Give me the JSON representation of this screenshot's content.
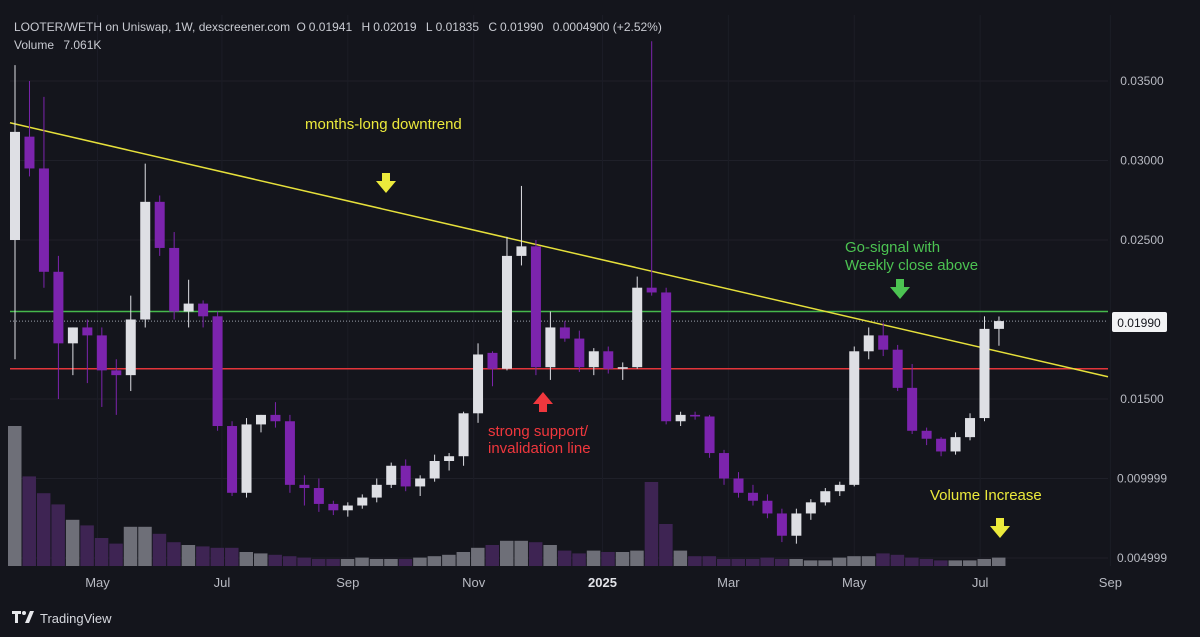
{
  "header": {
    "pair": "LOOTER/WETH on Uniswap, 1W, dexscreener.com",
    "open_label": "O",
    "open": "0.01941",
    "high_label": "H",
    "high": "0.02019",
    "low_label": "L",
    "low": "0.01835",
    "close_label": "C",
    "close": "0.01990",
    "change": "0.0004900 (+2.52%)",
    "volume_label": "Volume",
    "volume": "7.061K"
  },
  "footer": {
    "brand": "TradingView",
    "logo": "tradingview-logo-icon"
  },
  "colors": {
    "background": "#14151c",
    "bull": "#dedfe4",
    "bear": "#7c24ad",
    "trendline": "#e6e03b",
    "support": "#e3353a",
    "resistance": "#46b84c",
    "annotation_yellow": "#ecea3c",
    "annotation_red": "#f0373d",
    "annotation_green": "#4cc352",
    "vol_bull": "#6e6f78",
    "vol_bear": "#3e2453"
  },
  "annotations": {
    "downtrend": "months-long downtrend",
    "support_line1": "strong support/",
    "support_line2": "invalidation line",
    "go_line1": "Go-signal with",
    "go_line2": "Weekly close above",
    "volume": "Volume Increase"
  },
  "chart_data": {
    "type": "candlestick",
    "title": "LOOTER/WETH on Uniswap, 1W",
    "price_axis": {
      "ticks": [
        0.035,
        0.03,
        0.025,
        0.015,
        0.009999,
        0.004999
      ],
      "tick_labels": [
        "0.03500",
        "0.03000",
        "0.02500",
        "0.01500",
        "0.009999",
        "0.004999"
      ],
      "current_price_label": "0.01990",
      "current_price": 0.0199
    },
    "time_axis": {
      "labels": [
        "May",
        "Jul",
        "Sep",
        "Nov",
        "2025",
        "Mar",
        "May",
        "Jul",
        "Sep"
      ],
      "label_weeks": [
        5.7,
        14.3,
        23,
        31.7,
        40.6,
        49.3,
        58,
        66.7,
        75.7
      ]
    },
    "candles_ohlc_weekly": [
      [
        0.025,
        0.036,
        0.0175,
        0.0318
      ],
      [
        0.0315,
        0.035,
        0.029,
        0.0295
      ],
      [
        0.0295,
        0.034,
        0.022,
        0.023
      ],
      [
        0.023,
        0.024,
        0.015,
        0.0185
      ],
      [
        0.0185,
        0.0195,
        0.0165,
        0.0195
      ],
      [
        0.0195,
        0.02,
        0.016,
        0.019
      ],
      [
        0.019,
        0.0195,
        0.0145,
        0.0168
      ],
      [
        0.0168,
        0.0175,
        0.014,
        0.0165
      ],
      [
        0.0165,
        0.0215,
        0.0155,
        0.02
      ],
      [
        0.02,
        0.0298,
        0.0195,
        0.0274
      ],
      [
        0.0274,
        0.0278,
        0.024,
        0.0245
      ],
      [
        0.0245,
        0.0255,
        0.02,
        0.0205
      ],
      [
        0.0205,
        0.0225,
        0.0195,
        0.021
      ],
      [
        0.021,
        0.0212,
        0.0195,
        0.0202
      ],
      [
        0.0202,
        0.0205,
        0.013,
        0.0133
      ],
      [
        0.0133,
        0.0136,
        0.0089,
        0.0091
      ],
      [
        0.0091,
        0.0138,
        0.0088,
        0.0134
      ],
      [
        0.0134,
        0.014,
        0.0129,
        0.014
      ],
      [
        0.014,
        0.0148,
        0.0132,
        0.0136
      ],
      [
        0.0136,
        0.014,
        0.0091,
        0.0096
      ],
      [
        0.0096,
        0.0102,
        0.0083,
        0.0094
      ],
      [
        0.0094,
        0.01,
        0.0079,
        0.0084
      ],
      [
        0.0084,
        0.0086,
        0.0077,
        0.008
      ],
      [
        0.008,
        0.0085,
        0.0076,
        0.0083
      ],
      [
        0.0083,
        0.009,
        0.0081,
        0.0088
      ],
      [
        0.0088,
        0.01,
        0.0085,
        0.0096
      ],
      [
        0.0096,
        0.011,
        0.0094,
        0.0108
      ],
      [
        0.0108,
        0.0112,
        0.0092,
        0.0095
      ],
      [
        0.0095,
        0.0102,
        0.0089,
        0.01
      ],
      [
        0.01,
        0.0115,
        0.0098,
        0.0111
      ],
      [
        0.0111,
        0.0116,
        0.0105,
        0.0114
      ],
      [
        0.0114,
        0.0142,
        0.0108,
        0.0141
      ],
      [
        0.0141,
        0.0185,
        0.0135,
        0.0178
      ],
      [
        0.0179,
        0.018,
        0.0158,
        0.0169
      ],
      [
        0.0169,
        0.0252,
        0.0168,
        0.024
      ],
      [
        0.024,
        0.0284,
        0.0234,
        0.0246
      ],
      [
        0.0246,
        0.025,
        0.0165,
        0.017
      ],
      [
        0.017,
        0.0205,
        0.0162,
        0.0195
      ],
      [
        0.0195,
        0.0199,
        0.0186,
        0.0188
      ],
      [
        0.0188,
        0.0193,
        0.0167,
        0.017
      ],
      [
        0.017,
        0.0182,
        0.0165,
        0.018
      ],
      [
        0.018,
        0.0183,
        0.0166,
        0.0169
      ],
      [
        0.0169,
        0.0173,
        0.0162,
        0.017
      ],
      [
        0.017,
        0.0227,
        0.0169,
        0.022
      ],
      [
        0.022,
        0.0375,
        0.0215,
        0.0217
      ],
      [
        0.0217,
        0.022,
        0.0134,
        0.0136
      ],
      [
        0.0136,
        0.0142,
        0.0133,
        0.014
      ],
      [
        0.014,
        0.0142,
        0.0137,
        0.0139
      ],
      [
        0.0139,
        0.014,
        0.0113,
        0.0116
      ],
      [
        0.0116,
        0.0118,
        0.0096,
        0.01
      ],
      [
        0.01,
        0.0104,
        0.0088,
        0.0091
      ],
      [
        0.0091,
        0.0096,
        0.0083,
        0.0086
      ],
      [
        0.0086,
        0.009,
        0.0075,
        0.0078
      ],
      [
        0.0078,
        0.0081,
        0.006,
        0.0064
      ],
      [
        0.0064,
        0.0081,
        0.0059,
        0.0078
      ],
      [
        0.0078,
        0.0087,
        0.0074,
        0.0085
      ],
      [
        0.0085,
        0.0094,
        0.0083,
        0.0092
      ],
      [
        0.0092,
        0.0098,
        0.0089,
        0.0096
      ],
      [
        0.0096,
        0.0183,
        0.0095,
        0.018
      ],
      [
        0.018,
        0.0195,
        0.0175,
        0.019
      ],
      [
        0.019,
        0.0198,
        0.0177,
        0.0181
      ],
      [
        0.0181,
        0.0184,
        0.0155,
        0.0157
      ],
      [
        0.0157,
        0.0172,
        0.0128,
        0.013
      ],
      [
        0.013,
        0.0132,
        0.0121,
        0.0125
      ],
      [
        0.0125,
        0.0126,
        0.0114,
        0.0117
      ],
      [
        0.0117,
        0.0129,
        0.0115,
        0.0126
      ],
      [
        0.0126,
        0.0141,
        0.0124,
        0.0138
      ],
      [
        0.0138,
        0.0202,
        0.0136,
        0.01941
      ],
      [
        0.01941,
        0.02019,
        0.01835,
        0.0199
      ]
    ],
    "volume_relative": [
      1.0,
      0.64,
      0.52,
      0.44,
      0.33,
      0.29,
      0.2,
      0.16,
      0.28,
      0.28,
      0.23,
      0.17,
      0.15,
      0.14,
      0.13,
      0.13,
      0.1,
      0.09,
      0.08,
      0.07,
      0.06,
      0.05,
      0.05,
      0.05,
      0.06,
      0.05,
      0.05,
      0.05,
      0.06,
      0.07,
      0.08,
      0.1,
      0.13,
      0.15,
      0.18,
      0.18,
      0.17,
      0.15,
      0.11,
      0.09,
      0.11,
      0.1,
      0.1,
      0.11,
      0.6,
      0.3,
      0.11,
      0.07,
      0.07,
      0.05,
      0.05,
      0.05,
      0.06,
      0.05,
      0.05,
      0.04,
      0.04,
      0.06,
      0.07,
      0.07,
      0.09,
      0.08,
      0.06,
      0.05,
      0.04,
      0.04,
      0.04,
      0.05,
      0.06
    ],
    "lines": {
      "trendline": {
        "from": [
          0,
          0.0323
        ],
        "to": [
          76,
          0.0163
        ]
      },
      "resistance": 0.0205,
      "support": 0.0169
    }
  }
}
